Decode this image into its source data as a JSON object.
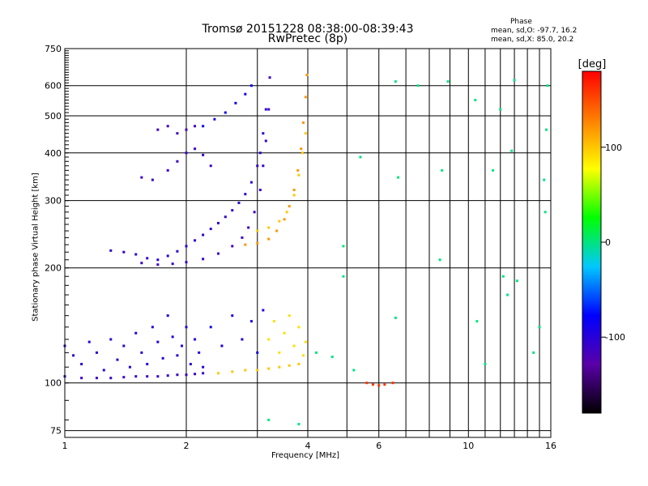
{
  "chart_data": {
    "type": "scatter",
    "title": "Tromsø 20151228 08:38:00-08:39:43",
    "subtitle": "RwPretec (8p)",
    "xlabel": "Frequency [MHz]",
    "ylabel": "Stationary phase Virtual Height [km]",
    "x_scale": "log",
    "y_scale": "log",
    "xlim": [
      1,
      16
    ],
    "ylim": [
      72,
      750
    ],
    "x_ticks": [
      1,
      2,
      4,
      6,
      10,
      16
    ],
    "x_tick_labels": [
      "1",
      "2",
      "4",
      "6",
      "10",
      "16"
    ],
    "y_ticks": [
      75,
      100,
      200,
      300,
      400,
      500,
      600,
      750
    ],
    "y_tick_labels": [
      "75",
      "100",
      "200",
      "300",
      "400",
      "500",
      "600",
      "750"
    ],
    "grid": true,
    "colorbar": {
      "label": "[deg]",
      "range": [
        -180,
        180
      ],
      "ticks": [
        -100,
        0,
        100
      ],
      "tick_labels": [
        "-100",
        "0",
        "100"
      ],
      "colors": [
        "#000000",
        "#5a00a8",
        "#0000ff",
        "#00c8ff",
        "#00ff00",
        "#ffff00",
        "#ff8000",
        "#ff0000"
      ]
    },
    "phase_stats": {
      "heading": "Phase",
      "o_line": "mean, sd,O: -97.7, 16.2",
      "x_line": "mean, sd,X:  85.0, 20.2"
    },
    "traces": [
      {
        "name": "",
        "phase": -105,
        "points": [
          [
            1.3,
            222
          ],
          [
            1.4,
            220
          ],
          [
            1.5,
            217
          ],
          [
            1.6,
            212
          ],
          [
            1.7,
            210
          ],
          [
            1.8,
            215
          ],
          [
            1.9,
            221
          ],
          [
            2.0,
            228
          ],
          [
            2.1,
            236
          ],
          [
            2.2,
            244
          ],
          [
            2.3,
            253
          ],
          [
            2.4,
            262
          ],
          [
            2.5,
            272
          ],
          [
            2.6,
            283
          ],
          [
            2.7,
            296
          ],
          [
            2.8,
            312
          ],
          [
            2.9,
            335
          ],
          [
            3.0,
            370
          ],
          [
            3.05,
            400
          ],
          [
            3.1,
            450
          ],
          [
            3.15,
            520
          ]
        ]
      },
      {
        "name": "",
        "phase": -110,
        "points": [
          [
            1.55,
            206
          ],
          [
            1.7,
            204
          ],
          [
            1.85,
            205
          ],
          [
            2.0,
            207
          ],
          [
            2.2,
            211
          ],
          [
            2.4,
            218
          ],
          [
            2.6,
            228
          ],
          [
            2.75,
            240
          ],
          [
            2.85,
            255
          ],
          [
            2.95,
            280
          ],
          [
            3.05,
            320
          ],
          [
            3.1,
            370
          ],
          [
            3.15,
            430
          ],
          [
            3.2,
            520
          ],
          [
            3.22,
            630
          ]
        ]
      },
      {
        "name": "",
        "phase": -85,
        "points": [
          [
            2.2,
            470
          ],
          [
            2.35,
            490
          ],
          [
            2.5,
            510
          ],
          [
            2.65,
            540
          ],
          [
            2.8,
            570
          ],
          [
            2.9,
            600
          ]
        ]
      },
      {
        "name": "",
        "phase": -110,
        "points": [
          [
            1.55,
            345
          ],
          [
            1.65,
            340
          ],
          [
            1.8,
            360
          ],
          [
            1.9,
            380
          ],
          [
            2.0,
            400
          ],
          [
            2.1,
            410
          ],
          [
            2.2,
            395
          ],
          [
            2.3,
            370
          ]
        ]
      },
      {
        "name": "",
        "phase": -115,
        "points": [
          [
            1.7,
            460
          ],
          [
            1.8,
            470
          ],
          [
            1.9,
            450
          ],
          [
            2.0,
            460
          ],
          [
            2.1,
            470
          ]
        ]
      },
      {
        "name": "",
        "phase": 120,
        "points": [
          [
            2.8,
            230
          ],
          [
            3.0,
            232
          ],
          [
            3.2,
            238
          ],
          [
            3.35,
            250
          ],
          [
            3.5,
            268
          ],
          [
            3.6,
            290
          ],
          [
            3.7,
            320
          ],
          [
            3.78,
            360
          ],
          [
            3.85,
            410
          ],
          [
            3.9,
            480
          ],
          [
            3.95,
            560
          ],
          [
            3.98,
            640
          ]
        ]
      },
      {
        "name": "",
        "phase": 100,
        "points": [
          [
            3.0,
            250
          ],
          [
            3.2,
            255
          ],
          [
            3.4,
            265
          ],
          [
            3.55,
            280
          ],
          [
            3.7,
            310
          ],
          [
            3.8,
            350
          ],
          [
            3.88,
            400
          ],
          [
            3.95,
            450
          ]
        ]
      },
      {
        "name": "",
        "phase": -110,
        "points": [
          [
            1.0,
            104
          ],
          [
            1.1,
            103
          ],
          [
            1.2,
            103
          ],
          [
            1.3,
            103
          ],
          [
            1.4,
            103.5
          ],
          [
            1.5,
            104
          ],
          [
            1.6,
            104
          ],
          [
            1.7,
            104
          ],
          [
            1.8,
            104.5
          ],
          [
            1.9,
            105
          ],
          [
            2.0,
            105
          ],
          [
            2.1,
            105.5
          ],
          [
            2.2,
            106
          ]
        ]
      },
      {
        "name": "",
        "phase": 100,
        "points": [
          [
            2.4,
            106
          ],
          [
            2.6,
            107
          ],
          [
            2.8,
            108
          ],
          [
            3.0,
            108
          ],
          [
            3.2,
            109
          ],
          [
            3.4,
            110
          ],
          [
            3.6,
            111
          ],
          [
            3.8,
            112
          ]
        ]
      },
      {
        "name": "",
        "phase": -100,
        "points": [
          [
            1.0,
            125
          ],
          [
            1.05,
            118
          ],
          [
            1.1,
            112
          ],
          [
            1.15,
            128
          ],
          [
            1.2,
            120
          ],
          [
            1.25,
            108
          ],
          [
            1.3,
            130
          ],
          [
            1.35,
            115
          ],
          [
            1.4,
            125
          ],
          [
            1.45,
            110
          ],
          [
            1.5,
            135
          ],
          [
            1.55,
            120
          ],
          [
            1.6,
            112
          ],
          [
            1.65,
            140
          ],
          [
            1.7,
            128
          ],
          [
            1.75,
            116
          ],
          [
            1.8,
            150
          ],
          [
            1.85,
            132
          ],
          [
            1.9,
            118
          ],
          [
            1.95,
            125
          ],
          [
            2.0,
            140
          ],
          [
            2.05,
            112
          ],
          [
            2.1,
            130
          ],
          [
            2.15,
            120
          ],
          [
            2.2,
            110
          ]
        ]
      },
      {
        "name": "",
        "phase": -90,
        "points": [
          [
            2.3,
            140
          ],
          [
            2.45,
            125
          ],
          [
            2.6,
            150
          ],
          [
            2.75,
            130
          ],
          [
            2.9,
            145
          ],
          [
            3.0,
            120
          ],
          [
            3.1,
            155
          ]
        ]
      },
      {
        "name": "",
        "phase": 90,
        "points": [
          [
            3.2,
            130
          ],
          [
            3.3,
            145
          ],
          [
            3.4,
            120
          ],
          [
            3.5,
            135
          ],
          [
            3.6,
            150
          ],
          [
            3.7,
            125
          ],
          [
            3.8,
            140
          ],
          [
            3.9,
            118
          ],
          [
            3.95,
            128
          ]
        ]
      },
      {
        "name": "",
        "phase": 160,
        "points": [
          [
            5.6,
            100
          ],
          [
            5.8,
            99
          ],
          [
            6.0,
            98.5
          ],
          [
            6.2,
            99
          ],
          [
            6.5,
            100
          ]
        ]
      },
      {
        "name": "",
        "phase": 0,
        "points": [
          [
            4.2,
            120
          ],
          [
            4.6,
            117
          ],
          [
            5.2,
            108
          ],
          [
            4.9,
            190
          ],
          [
            4.9,
            228
          ],
          [
            5.4,
            390
          ],
          [
            6.6,
            148
          ],
          [
            6.6,
            615
          ],
          [
            6.7,
            345
          ],
          [
            7.5,
            600
          ],
          [
            8.5,
            210
          ],
          [
            8.6,
            360
          ],
          [
            8.9,
            615
          ],
          [
            10.5,
            145
          ],
          [
            10.4,
            550
          ],
          [
            11.0,
            112
          ],
          [
            11.5,
            360
          ],
          [
            12.0,
            520
          ],
          [
            12.2,
            190
          ],
          [
            12.5,
            170
          ],
          [
            12.8,
            405
          ],
          [
            13.0,
            620
          ],
          [
            13.2,
            185
          ],
          [
            14.5,
            120
          ],
          [
            15.0,
            140
          ],
          [
            15.4,
            340
          ],
          [
            15.5,
            280
          ],
          [
            15.6,
            460
          ],
          [
            15.7,
            600
          ],
          [
            3.2,
            80
          ],
          [
            3.8,
            78
          ]
        ]
      }
    ]
  }
}
